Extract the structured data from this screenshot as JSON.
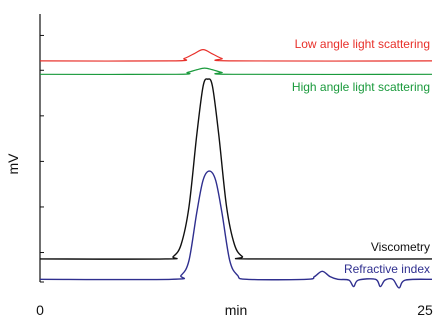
{
  "chart_data": {
    "type": "line",
    "xlabel": "min",
    "ylabel": "mV",
    "xlim": [
      0,
      25
    ],
    "ylim": [
      0,
      100
    ],
    "x_tick_labels": [
      {
        "x": 0,
        "label": "0"
      },
      {
        "x": 25,
        "label": "25"
      }
    ],
    "y_ticks": [
      92,
      79,
      62,
      45,
      28,
      11,
      0
    ],
    "grid": false,
    "legend": "none",
    "series": [
      {
        "name": "Low angle light scattering",
        "color": "#e8302a",
        "points": [
          [
            0,
            82.5
          ],
          [
            8.5,
            82.5
          ],
          [
            9.2,
            83.4
          ],
          [
            9.8,
            85.1
          ],
          [
            10.4,
            86.7
          ],
          [
            11.0,
            85.1
          ],
          [
            11.6,
            83.4
          ],
          [
            12.3,
            82.5
          ],
          [
            25,
            82.5
          ]
        ]
      },
      {
        "name": "High angle light scattering",
        "color": "#1a9a3c",
        "points": [
          [
            0,
            77.5
          ],
          [
            8.7,
            77.5
          ],
          [
            9.4,
            78.2
          ],
          [
            10.0,
            79.2
          ],
          [
            10.5,
            79.8
          ],
          [
            11.0,
            79.2
          ],
          [
            11.6,
            78.2
          ],
          [
            12.3,
            77.5
          ],
          [
            25,
            77.5
          ]
        ]
      },
      {
        "name": "Viscometry",
        "color": "#111111",
        "points": [
          [
            0,
            8.6
          ],
          [
            8.0,
            8.6
          ],
          [
            8.5,
            9.5
          ],
          [
            9.0,
            14
          ],
          [
            9.5,
            28
          ],
          [
            10.0,
            55
          ],
          [
            10.4,
            73
          ],
          [
            10.7,
            75.7
          ],
          [
            11.0,
            73
          ],
          [
            11.4,
            55
          ],
          [
            11.9,
            28
          ],
          [
            12.4,
            14
          ],
          [
            12.9,
            9.5
          ],
          [
            13.5,
            8.6
          ],
          [
            25,
            8.6
          ]
        ]
      },
      {
        "name": "Refractive index",
        "color": "#2f2f8f",
        "points": [
          [
            0,
            1.0
          ],
          [
            8.4,
            1.0
          ],
          [
            9.0,
            2.5
          ],
          [
            9.5,
            8
          ],
          [
            10.0,
            26
          ],
          [
            10.4,
            38
          ],
          [
            10.8,
            41.4
          ],
          [
            11.2,
            38
          ],
          [
            11.6,
            26
          ],
          [
            12.1,
            8
          ],
          [
            12.6,
            2.5
          ],
          [
            13.2,
            1.0
          ],
          [
            17.0,
            1.0
          ],
          [
            17.5,
            2.0
          ],
          [
            18.0,
            4.0
          ],
          [
            18.5,
            2.0
          ],
          [
            19.0,
            1.0
          ],
          [
            19.7,
            0.7
          ],
          [
            20.0,
            -1.7
          ],
          [
            20.3,
            0.7
          ],
          [
            21.4,
            1.0
          ],
          [
            21.7,
            -1.7
          ],
          [
            22.0,
            0.7
          ],
          [
            22.5,
            1.0
          ],
          [
            22.9,
            -2.2
          ],
          [
            23.3,
            0.7
          ],
          [
            25,
            1.0
          ]
        ]
      }
    ]
  },
  "colors": {
    "axis": "#111111"
  }
}
